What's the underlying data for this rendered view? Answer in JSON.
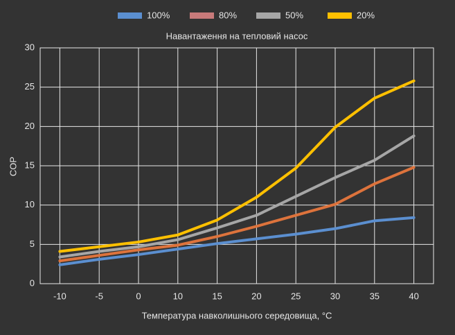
{
  "chart_data": {
    "type": "line",
    "title": "Навантаження на тепловий насос",
    "x_label": "Температура навколишнього середовища, °C",
    "y_label": "COP",
    "categories": [
      "-10",
      "-5",
      "0",
      "10",
      "15",
      "20",
      "25",
      "30",
      "35",
      "40"
    ],
    "series": [
      {
        "name": "100%",
        "color": "#5b8fd0",
        "values": [
          2.4,
          3.1,
          3.7,
          4.4,
          5.1,
          5.7,
          6.3,
          7.0,
          8.0,
          8.4
        ]
      },
      {
        "name": "80%",
        "color": "#dd733c",
        "legend_color": "#c87a7a",
        "values": [
          2.9,
          3.6,
          4.3,
          4.9,
          6.0,
          7.3,
          8.7,
          10.1,
          12.7,
          14.8
        ]
      },
      {
        "name": "50%",
        "color": "#a6a6a6",
        "values": [
          3.4,
          4.1,
          4.7,
          5.6,
          7.1,
          8.7,
          11.1,
          13.5,
          15.7,
          18.8
        ]
      },
      {
        "name": "20%",
        "color": "#ffc000",
        "values": [
          4.1,
          4.7,
          5.3,
          6.2,
          8.1,
          11.0,
          14.7,
          19.9,
          23.6,
          25.8
        ]
      }
    ],
    "ylim": [
      0,
      30
    ],
    "yticks": [
      0,
      5,
      10,
      15,
      20,
      25,
      30
    ],
    "grid": true,
    "legend": "top"
  }
}
